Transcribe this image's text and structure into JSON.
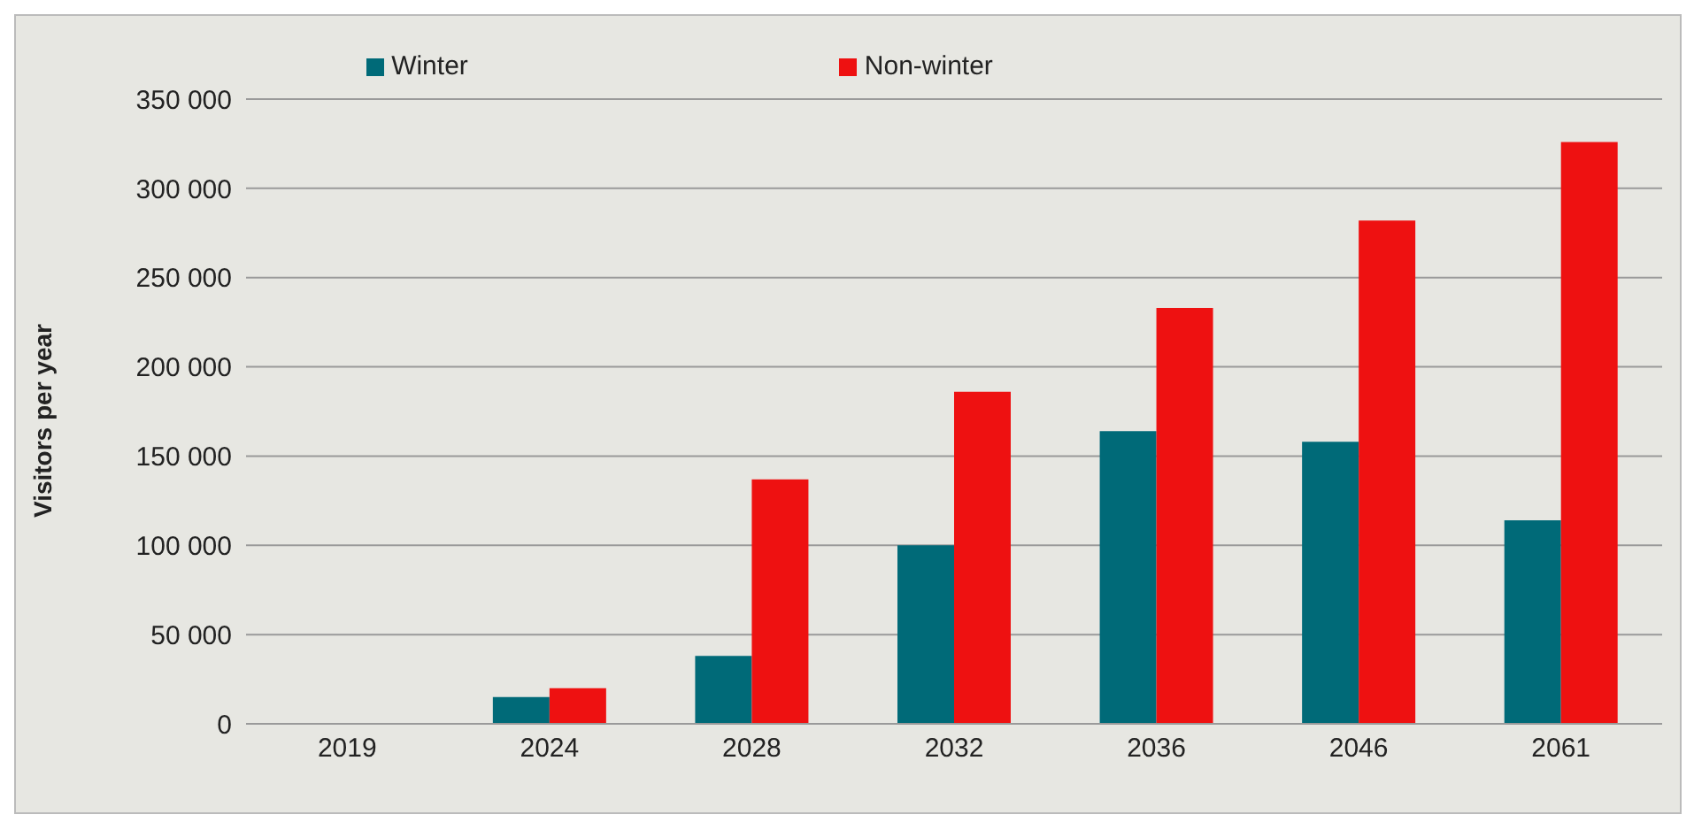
{
  "chart_data": {
    "type": "bar",
    "ylabel": "Visitors per year",
    "categories": [
      "2019",
      "2024",
      "2028",
      "2032",
      "2036",
      "2046",
      "2061"
    ],
    "series": [
      {
        "name": "Winter",
        "color": "#006a78",
        "values": [
          0,
          15000,
          38000,
          100000,
          164000,
          158000,
          114000
        ]
      },
      {
        "name": "Non-winter",
        "color": "#ee1111",
        "values": [
          0,
          20000,
          137000,
          186000,
          233000,
          282000,
          326000
        ]
      }
    ],
    "ylim": [
      0,
      350000
    ],
    "yticks": [
      {
        "value": 0,
        "label": "0"
      },
      {
        "value": 50000,
        "label": "50 000"
      },
      {
        "value": 100000,
        "label": "100 000"
      },
      {
        "value": 150000,
        "label": "150 000"
      },
      {
        "value": 200000,
        "label": "200 000"
      },
      {
        "value": 250000,
        "label": "250 000"
      },
      {
        "value": 300000,
        "label": "300 000"
      },
      {
        "value": 350000,
        "label": "350 000"
      }
    ],
    "grid": "y",
    "legend": "top"
  }
}
